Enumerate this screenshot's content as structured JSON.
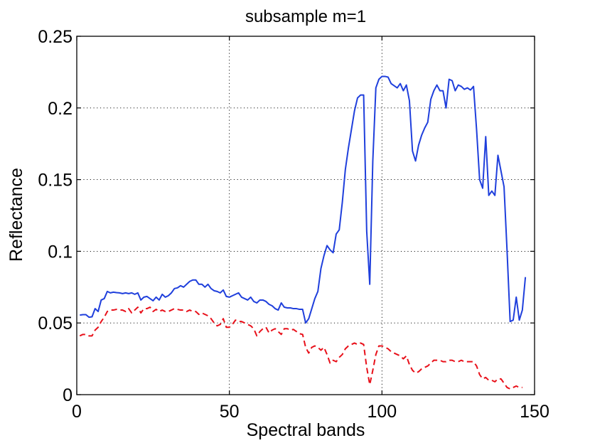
{
  "chart_data": {
    "type": "line",
    "title": "subsample m=1",
    "xlabel": "Spectral bands",
    "ylabel": "Reflectance",
    "xlim": [
      0,
      150
    ],
    "ylim": [
      0,
      0.25
    ],
    "xticks": [
      0,
      50,
      100,
      150
    ],
    "yticks": [
      0,
      0.05,
      0.1,
      0.15,
      0.2,
      0.25
    ],
    "xtick_labels": [
      "0",
      "50",
      "100",
      "150"
    ],
    "ytick_labels": [
      "0",
      "0.05",
      "0.1",
      "0.15",
      "0.2",
      "0.25"
    ],
    "grid": true,
    "grid_style": "dotted",
    "series": [
      {
        "color": "#1f3fdc",
        "linestyle": "solid",
        "points": [
          [
            1,
            0.0555
          ],
          [
            2,
            0.0558
          ],
          [
            3,
            0.0558
          ],
          [
            4,
            0.054
          ],
          [
            5,
            0.0543
          ],
          [
            6,
            0.06
          ],
          [
            7,
            0.058
          ],
          [
            8,
            0.066
          ],
          [
            9,
            0.067
          ],
          [
            10,
            0.072
          ],
          [
            11,
            0.071
          ],
          [
            12,
            0.0715
          ],
          [
            13,
            0.0712
          ],
          [
            14,
            0.071
          ],
          [
            15,
            0.0705
          ],
          [
            16,
            0.071
          ],
          [
            17,
            0.0705
          ],
          [
            18,
            0.071
          ],
          [
            19,
            0.07
          ],
          [
            20,
            0.071
          ],
          [
            21,
            0.066
          ],
          [
            22,
            0.068
          ],
          [
            23,
            0.0685
          ],
          [
            24,
            0.067
          ],
          [
            25,
            0.0655
          ],
          [
            26,
            0.068
          ],
          [
            27,
            0.066
          ],
          [
            28,
            0.07
          ],
          [
            29,
            0.068
          ],
          [
            30,
            0.069
          ],
          [
            31,
            0.071
          ],
          [
            32,
            0.074
          ],
          [
            33,
            0.0745
          ],
          [
            34,
            0.076
          ],
          [
            35,
            0.075
          ],
          [
            36,
            0.077
          ],
          [
            37,
            0.079
          ],
          [
            38,
            0.08
          ],
          [
            39,
            0.08
          ],
          [
            40,
            0.077
          ],
          [
            41,
            0.077
          ],
          [
            42,
            0.075
          ],
          [
            43,
            0.077
          ],
          [
            44,
            0.074
          ],
          [
            45,
            0.0725
          ],
          [
            46,
            0.072
          ],
          [
            47,
            0.071
          ],
          [
            48,
            0.073
          ],
          [
            49,
            0.0685
          ],
          [
            50,
            0.068
          ],
          [
            51,
            0.069
          ],
          [
            52,
            0.07
          ],
          [
            53,
            0.071
          ],
          [
            54,
            0.068
          ],
          [
            55,
            0.067
          ],
          [
            56,
            0.066
          ],
          [
            57,
            0.068
          ],
          [
            58,
            0.065
          ],
          [
            59,
            0.064
          ],
          [
            60,
            0.066
          ],
          [
            61,
            0.066
          ],
          [
            62,
            0.065
          ],
          [
            63,
            0.063
          ],
          [
            64,
            0.062
          ],
          [
            65,
            0.06
          ],
          [
            66,
            0.059
          ],
          [
            67,
            0.064
          ],
          [
            68,
            0.061
          ],
          [
            69,
            0.0605
          ],
          [
            70,
            0.0605
          ],
          [
            71,
            0.06
          ],
          [
            72,
            0.06
          ],
          [
            73,
            0.0595
          ],
          [
            74,
            0.0595
          ],
          [
            75,
            0.05
          ],
          [
            76,
            0.053
          ],
          [
            77,
            0.06
          ],
          [
            78,
            0.067
          ],
          [
            79,
            0.072
          ],
          [
            80,
            0.088
          ],
          [
            81,
            0.097
          ],
          [
            82,
            0.104
          ],
          [
            83,
            0.101
          ],
          [
            84,
            0.099
          ],
          [
            85,
            0.112
          ],
          [
            86,
            0.115
          ],
          [
            87,
            0.134
          ],
          [
            88,
            0.157
          ],
          [
            89,
            0.172
          ],
          [
            90,
            0.185
          ],
          [
            91,
            0.198
          ],
          [
            92,
            0.207
          ],
          [
            93,
            0.209
          ],
          [
            94,
            0.209
          ],
          [
            95,
            0.114
          ],
          [
            96,
            0.077
          ],
          [
            97,
            0.163
          ],
          [
            98,
            0.214
          ],
          [
            99,
            0.22
          ],
          [
            100,
            0.222
          ],
          [
            101,
            0.222
          ],
          [
            102,
            0.2215
          ],
          [
            103,
            0.217
          ],
          [
            104,
            0.2155
          ],
          [
            105,
            0.214
          ],
          [
            106,
            0.217
          ],
          [
            107,
            0.212
          ],
          [
            108,
            0.216
          ],
          [
            109,
            0.205
          ],
          [
            110,
            0.17
          ],
          [
            111,
            0.163
          ],
          [
            112,
            0.174
          ],
          [
            113,
            0.181
          ],
          [
            114,
            0.186
          ],
          [
            115,
            0.19
          ],
          [
            116,
            0.206
          ],
          [
            117,
            0.212
          ],
          [
            118,
            0.216
          ],
          [
            119,
            0.212
          ],
          [
            120,
            0.212
          ],
          [
            121,
            0.2
          ],
          [
            122,
            0.22
          ],
          [
            123,
            0.219
          ],
          [
            124,
            0.212
          ],
          [
            125,
            0.216
          ],
          [
            126,
            0.215
          ],
          [
            127,
            0.213
          ],
          [
            128,
            0.214
          ],
          [
            129,
            0.2125
          ],
          [
            130,
            0.215
          ],
          [
            131,
            0.185
          ],
          [
            132,
            0.15
          ],
          [
            133,
            0.144
          ],
          [
            134,
            0.18
          ],
          [
            135,
            0.139
          ],
          [
            136,
            0.142
          ],
          [
            137,
            0.139
          ],
          [
            138,
            0.167
          ],
          [
            139,
            0.156
          ],
          [
            140,
            0.145
          ],
          [
            141,
            0.1
          ],
          [
            142,
            0.051
          ],
          [
            143,
            0.052
          ],
          [
            144,
            0.068
          ],
          [
            145,
            0.052
          ],
          [
            146,
            0.059
          ],
          [
            147,
            0.082
          ]
        ]
      },
      {
        "color": "#e8101a",
        "linestyle": "dashed",
        "points": [
          [
            1,
            0.041
          ],
          [
            2,
            0.042
          ],
          [
            3,
            0.042
          ],
          [
            4,
            0.041
          ],
          [
            5,
            0.041
          ],
          [
            6,
            0.045
          ],
          [
            7,
            0.047
          ],
          [
            8,
            0.051
          ],
          [
            9,
            0.054
          ],
          [
            10,
            0.058
          ],
          [
            11,
            0.059
          ],
          [
            12,
            0.059
          ],
          [
            13,
            0.0595
          ],
          [
            14,
            0.059
          ],
          [
            15,
            0.059
          ],
          [
            16,
            0.058
          ],
          [
            17,
            0.06
          ],
          [
            18,
            0.057
          ],
          [
            19,
            0.059
          ],
          [
            20,
            0.061
          ],
          [
            21,
            0.057
          ],
          [
            22,
            0.06
          ],
          [
            23,
            0.06
          ],
          [
            24,
            0.061
          ],
          [
            25,
            0.058
          ],
          [
            26,
            0.0595
          ],
          [
            27,
            0.058
          ],
          [
            28,
            0.059
          ],
          [
            29,
            0.058
          ],
          [
            30,
            0.058
          ],
          [
            31,
            0.059
          ],
          [
            32,
            0.06
          ],
          [
            33,
            0.0595
          ],
          [
            34,
            0.059
          ],
          [
            35,
            0.059
          ],
          [
            36,
            0.058
          ],
          [
            37,
            0.059
          ],
          [
            38,
            0.058
          ],
          [
            39,
            0.058
          ],
          [
            40,
            0.056
          ],
          [
            41,
            0.057
          ],
          [
            42,
            0.056
          ],
          [
            43,
            0.055
          ],
          [
            44,
            0.053
          ],
          [
            45,
            0.05
          ],
          [
            46,
            0.048
          ],
          [
            47,
            0.049
          ],
          [
            48,
            0.053
          ],
          [
            49,
            0.047
          ],
          [
            50,
            0.047
          ],
          [
            51,
            0.049
          ],
          [
            52,
            0.052
          ],
          [
            53,
            0.051
          ],
          [
            54,
            0.051
          ],
          [
            55,
            0.05
          ],
          [
            56,
            0.049
          ],
          [
            57,
            0.048
          ],
          [
            58,
            0.046
          ],
          [
            59,
            0.041
          ],
          [
            60,
            0.044
          ],
          [
            61,
            0.046
          ],
          [
            62,
            0.047
          ],
          [
            63,
            0.043
          ],
          [
            64,
            0.045
          ],
          [
            65,
            0.046
          ],
          [
            66,
            0.044
          ],
          [
            67,
            0.042
          ],
          [
            68,
            0.046
          ],
          [
            69,
            0.046
          ],
          [
            70,
            0.045
          ],
          [
            71,
            0.0455
          ],
          [
            72,
            0.044
          ],
          [
            73,
            0.0425
          ],
          [
            74,
            0.042
          ],
          [
            75,
            0.033
          ],
          [
            76,
            0.029
          ],
          [
            77,
            0.033
          ],
          [
            78,
            0.034
          ],
          [
            79,
            0.033
          ],
          [
            80,
            0.031
          ],
          [
            81,
            0.033
          ],
          [
            82,
            0.028
          ],
          [
            83,
            0.022
          ],
          [
            84,
            0.024
          ],
          [
            85,
            0.023
          ],
          [
            86,
            0.026
          ],
          [
            87,
            0.028
          ],
          [
            88,
            0.032
          ],
          [
            89,
            0.034
          ],
          [
            90,
            0.035
          ],
          [
            91,
            0.036
          ],
          [
            92,
            0.035
          ],
          [
            93,
            0.036
          ],
          [
            94,
            0.035
          ],
          [
            95,
            0.019
          ],
          [
            96,
            0.007
          ],
          [
            97,
            0.017
          ],
          [
            98,
            0.028
          ],
          [
            99,
            0.034
          ],
          [
            100,
            0.034
          ],
          [
            101,
            0.033
          ],
          [
            102,
            0.032
          ],
          [
            103,
            0.03
          ],
          [
            104,
            0.029
          ],
          [
            105,
            0.028
          ],
          [
            106,
            0.027
          ],
          [
            107,
            0.025
          ],
          [
            108,
            0.027
          ],
          [
            109,
            0.021
          ],
          [
            110,
            0.017
          ],
          [
            111,
            0.015
          ],
          [
            112,
            0.016
          ],
          [
            113,
            0.018
          ],
          [
            114,
            0.019
          ],
          [
            115,
            0.02
          ],
          [
            116,
            0.022
          ],
          [
            117,
            0.024
          ],
          [
            118,
            0.024
          ],
          [
            119,
            0.024
          ],
          [
            120,
            0.023
          ],
          [
            121,
            0.023
          ],
          [
            122,
            0.024
          ],
          [
            123,
            0.024
          ],
          [
            124,
            0.023
          ],
          [
            125,
            0.023
          ],
          [
            126,
            0.024
          ],
          [
            127,
            0.023
          ],
          [
            128,
            0.023
          ],
          [
            129,
            0.023
          ],
          [
            130,
            0.023
          ],
          [
            131,
            0.02
          ],
          [
            132,
            0.014
          ],
          [
            133,
            0.011
          ],
          [
            134,
            0.012
          ],
          [
            135,
            0.01
          ],
          [
            136,
            0.01
          ],
          [
            137,
            0.009
          ],
          [
            138,
            0.011
          ],
          [
            139,
            0.011
          ],
          [
            140,
            0.008
          ],
          [
            141,
            0.005
          ],
          [
            142,
            0.004
          ],
          [
            143,
            0.005
          ],
          [
            144,
            0.006
          ],
          [
            145,
            0.005
          ],
          [
            146,
            0.005
          ]
        ]
      }
    ]
  }
}
